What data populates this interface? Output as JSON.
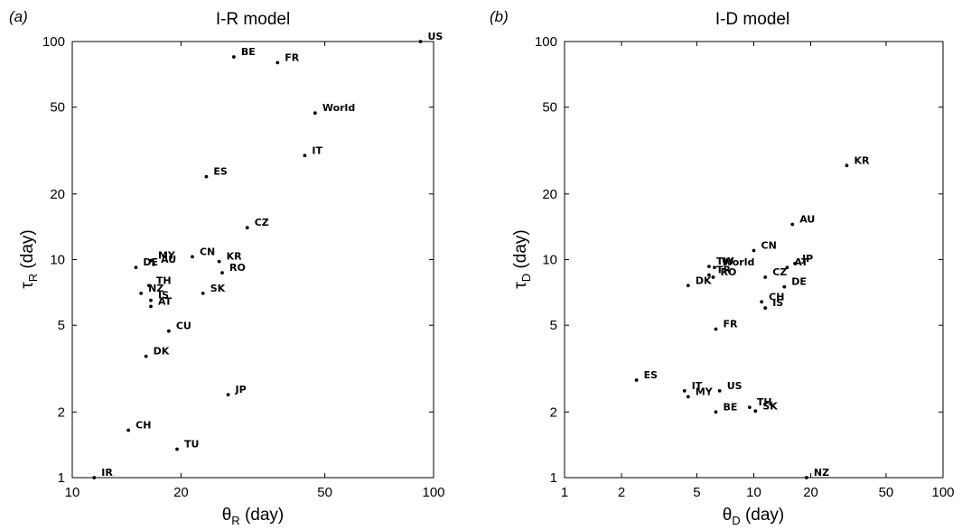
{
  "panels": [
    {
      "letter": "(a)",
      "title": "I-R model",
      "xlabel": "θ",
      "xsub": "R",
      "xunit": " (day)",
      "ylabel": "τ",
      "ysub": "R",
      "yunit": " (day)"
    },
    {
      "letter": "(b)",
      "title": "I-D model",
      "xlabel": "θ",
      "xsub": "D",
      "xunit": " (day)",
      "ylabel": "τ",
      "ysub": "D",
      "yunit": " (day)"
    }
  ],
  "chart_data": [
    {
      "type": "scatter",
      "title": "I-R model",
      "xlabel": "θR (day)",
      "ylabel": "τR (day)",
      "xscale": "log",
      "yscale": "log",
      "xlim": [
        10,
        100
      ],
      "ylim": [
        1,
        100
      ],
      "xticks": [
        10,
        20,
        50,
        100
      ],
      "xticklabels": [
        "10",
        "20",
        "50",
        "100"
      ],
      "yticks": [
        1,
        2,
        5,
        10,
        20,
        50,
        100
      ],
      "yticklabels": [
        "1",
        "2",
        "5",
        "10",
        "20",
        "50",
        "100"
      ],
      "grid": false,
      "points": [
        {
          "label": "US",
          "x": 92,
          "y": 100
        },
        {
          "label": "BE",
          "x": 28,
          "y": 85
        },
        {
          "label": "FR",
          "x": 37,
          "y": 80
        },
        {
          "label": "World",
          "x": 47,
          "y": 47
        },
        {
          "label": "IT",
          "x": 44,
          "y": 30
        },
        {
          "label": "ES",
          "x": 23.5,
          "y": 24
        },
        {
          "label": "CZ",
          "x": 30.5,
          "y": 14
        },
        {
          "label": "MY",
          "x": 16.5,
          "y": 9.9
        },
        {
          "label": "AU",
          "x": 16.8,
          "y": 9.5
        },
        {
          "label": "DE",
          "x": 15,
          "y": 9.2
        },
        {
          "label": "CN",
          "x": 21.5,
          "y": 10.3
        },
        {
          "label": "KR",
          "x": 25.5,
          "y": 9.8
        },
        {
          "label": "RO",
          "x": 26,
          "y": 8.7
        },
        {
          "label": "TH",
          "x": 16.3,
          "y": 7.6
        },
        {
          "label": "NZ",
          "x": 15.5,
          "y": 7
        },
        {
          "label": "SK",
          "x": 23,
          "y": 7
        },
        {
          "label": "IS",
          "x": 16.5,
          "y": 6.5
        },
        {
          "label": "AT",
          "x": 16.5,
          "y": 6.1
        },
        {
          "label": "CU",
          "x": 18.5,
          "y": 4.7
        },
        {
          "label": "DK",
          "x": 16,
          "y": 3.6
        },
        {
          "label": "JP",
          "x": 27,
          "y": 2.4
        },
        {
          "label": "CH",
          "x": 14.3,
          "y": 1.65
        },
        {
          "label": "TU",
          "x": 19.5,
          "y": 1.35
        },
        {
          "label": "IR",
          "x": 11.5,
          "y": 1
        }
      ]
    },
    {
      "type": "scatter",
      "title": "I-D model",
      "xlabel": "θD (day)",
      "ylabel": "τD (day)",
      "xscale": "log",
      "yscale": "log",
      "xlim": [
        1,
        100
      ],
      "ylim": [
        1,
        100
      ],
      "xticks": [
        1,
        2,
        5,
        10,
        20,
        50,
        100
      ],
      "xticklabels": [
        "1",
        "2",
        "5",
        "10",
        "20",
        "50",
        "100"
      ],
      "yticks": [
        1,
        2,
        5,
        10,
        20,
        50,
        100
      ],
      "yticklabels": [
        "1",
        "2",
        "5",
        "10",
        "20",
        "50",
        "100"
      ],
      "grid": false,
      "points": [
        {
          "label": "KR",
          "x": 31,
          "y": 27
        },
        {
          "label": "AU",
          "x": 16,
          "y": 14.5
        },
        {
          "label": "CN",
          "x": 10,
          "y": 11
        },
        {
          "label": "JP",
          "x": 16.5,
          "y": 9.6
        },
        {
          "label": "AT",
          "x": 15,
          "y": 9.2
        },
        {
          "label": "TW",
          "x": 5.8,
          "y": 9.3
        },
        {
          "label": "World",
          "x": 6.2,
          "y": 9.2
        },
        {
          "label": "TR",
          "x": 5.8,
          "y": 8.5
        },
        {
          "label": "RO",
          "x": 6.1,
          "y": 8.3
        },
        {
          "label": "CZ",
          "x": 11.5,
          "y": 8.3
        },
        {
          "label": "DK",
          "x": 4.5,
          "y": 7.6
        },
        {
          "label": "DE",
          "x": 14.5,
          "y": 7.5
        },
        {
          "label": "CH",
          "x": 11,
          "y": 6.4
        },
        {
          "label": "IS",
          "x": 11.5,
          "y": 6
        },
        {
          "label": "FR",
          "x": 6.3,
          "y": 4.8
        },
        {
          "label": "ES",
          "x": 2.4,
          "y": 2.8
        },
        {
          "label": "IT",
          "x": 4.3,
          "y": 2.5
        },
        {
          "label": "MY",
          "x": 4.5,
          "y": 2.35
        },
        {
          "label": "US",
          "x": 6.6,
          "y": 2.5
        },
        {
          "label": "TH",
          "x": 9.5,
          "y": 2.1
        },
        {
          "label": "SK",
          "x": 10.2,
          "y": 2.02
        },
        {
          "label": "BE",
          "x": 6.3,
          "y": 2
        },
        {
          "label": "NZ",
          "x": 19,
          "y": 1
        }
      ]
    }
  ]
}
